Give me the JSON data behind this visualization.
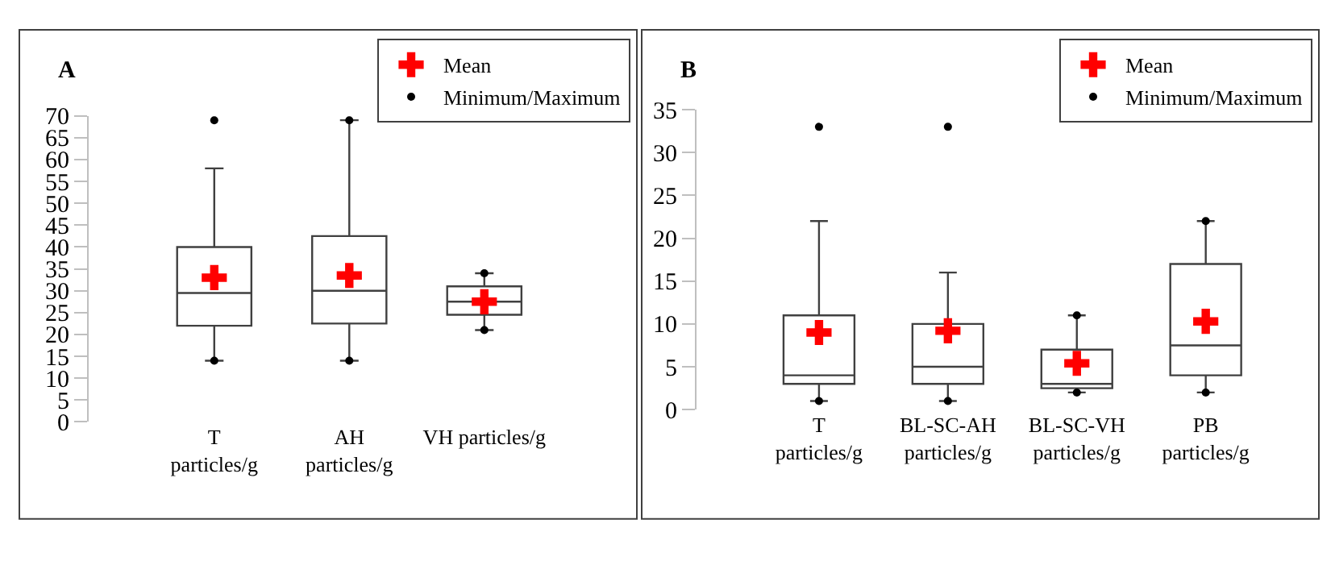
{
  "chart_data": [
    {
      "type": "box",
      "title": "A",
      "categories": [
        "T\nparticles/g",
        "AH\nparticles/g",
        "VH particles/g"
      ],
      "ylim": [
        0,
        70
      ],
      "yticks": [
        0,
        5,
        10,
        15,
        20,
        25,
        30,
        35,
        40,
        45,
        50,
        55,
        60,
        65,
        70
      ],
      "legend": "top right",
      "series": [
        {
          "color": "#404040",
          "boxes": [
            {
              "low": 14,
              "q1": 22,
              "median": 29.5,
              "q3": 40,
              "high": 58
            },
            {
              "low": 14,
              "q1": 22.5,
              "median": 30,
              "q3": 42.5,
              "high": 69
            },
            {
              "low": 21,
              "q1": 24.5,
              "median": 27.5,
              "q3": 31,
              "high": 34
            }
          ]
        },
        {
          "type": "scatter",
          "name": "Mean",
          "color": "#ff0000",
          "marker": "cross",
          "x": [
            "T\nparticles/g",
            "AH\nparticles/g",
            "VH particles/g"
          ],
          "values": [
            33,
            33.5,
            27.5
          ]
        },
        {
          "type": "scatter",
          "name": "Minimum/Maximum",
          "color": "#000000",
          "marker": "circle",
          "x": [
            "T\nparticles/g",
            "AH\nparticles/g",
            "VH particles/g",
            "T\nparticles/g",
            "AH\nparticles/g",
            "VH particles/g"
          ],
          "values": [
            14,
            14,
            21,
            69,
            69,
            34
          ]
        }
      ]
    },
    {
      "type": "box",
      "title": "B",
      "categories": [
        "T\nparticles/g",
        "BL-SC-AH\nparticles/g",
        "BL-SC-VH\nparticles/g",
        "PB\nparticles/g"
      ],
      "ylim": [
        0,
        35
      ],
      "yticks": [
        0,
        5,
        10,
        15,
        20,
        25,
        30,
        35
      ],
      "legend": "top right",
      "series": [
        {
          "color": "#404040",
          "boxes": [
            {
              "low": 1,
              "q1": 3,
              "median": 4,
              "q3": 11,
              "high": 22
            },
            {
              "low": 1,
              "q1": 3,
              "median": 5,
              "q3": 10,
              "high": 16
            },
            {
              "low": 2,
              "q1": 2.5,
              "median": 3,
              "q3": 7,
              "high": 11
            },
            {
              "low": 2,
              "q1": 4,
              "median": 7.5,
              "q3": 17,
              "high": 22
            }
          ]
        },
        {
          "type": "scatter",
          "name": "Mean",
          "color": "#ff0000",
          "marker": "cross",
          "x": [
            "T\nparticles/g",
            "BL-SC-AH\nparticles/g",
            "BL-SC-VH\nparticles/g",
            "PB\nparticles/g"
          ],
          "values": [
            9,
            9.2,
            5.4,
            10.3
          ]
        },
        {
          "type": "scatter",
          "name": "Minimum/Maximum",
          "color": "#000000",
          "marker": "circle",
          "x": [
            "T\nparticles/g",
            "BL-SC-AH\nparticles/g",
            "BL-SC-VH\nparticles/g",
            "PB\nparticles/g",
            "T\nparticles/g",
            "BL-SC-AH\nparticles/g",
            "BL-SC-VH\nparticles/g",
            "PB\nparticles/g"
          ],
          "values": [
            1,
            1,
            2,
            2,
            33,
            33,
            11,
            22
          ]
        }
      ]
    }
  ]
}
